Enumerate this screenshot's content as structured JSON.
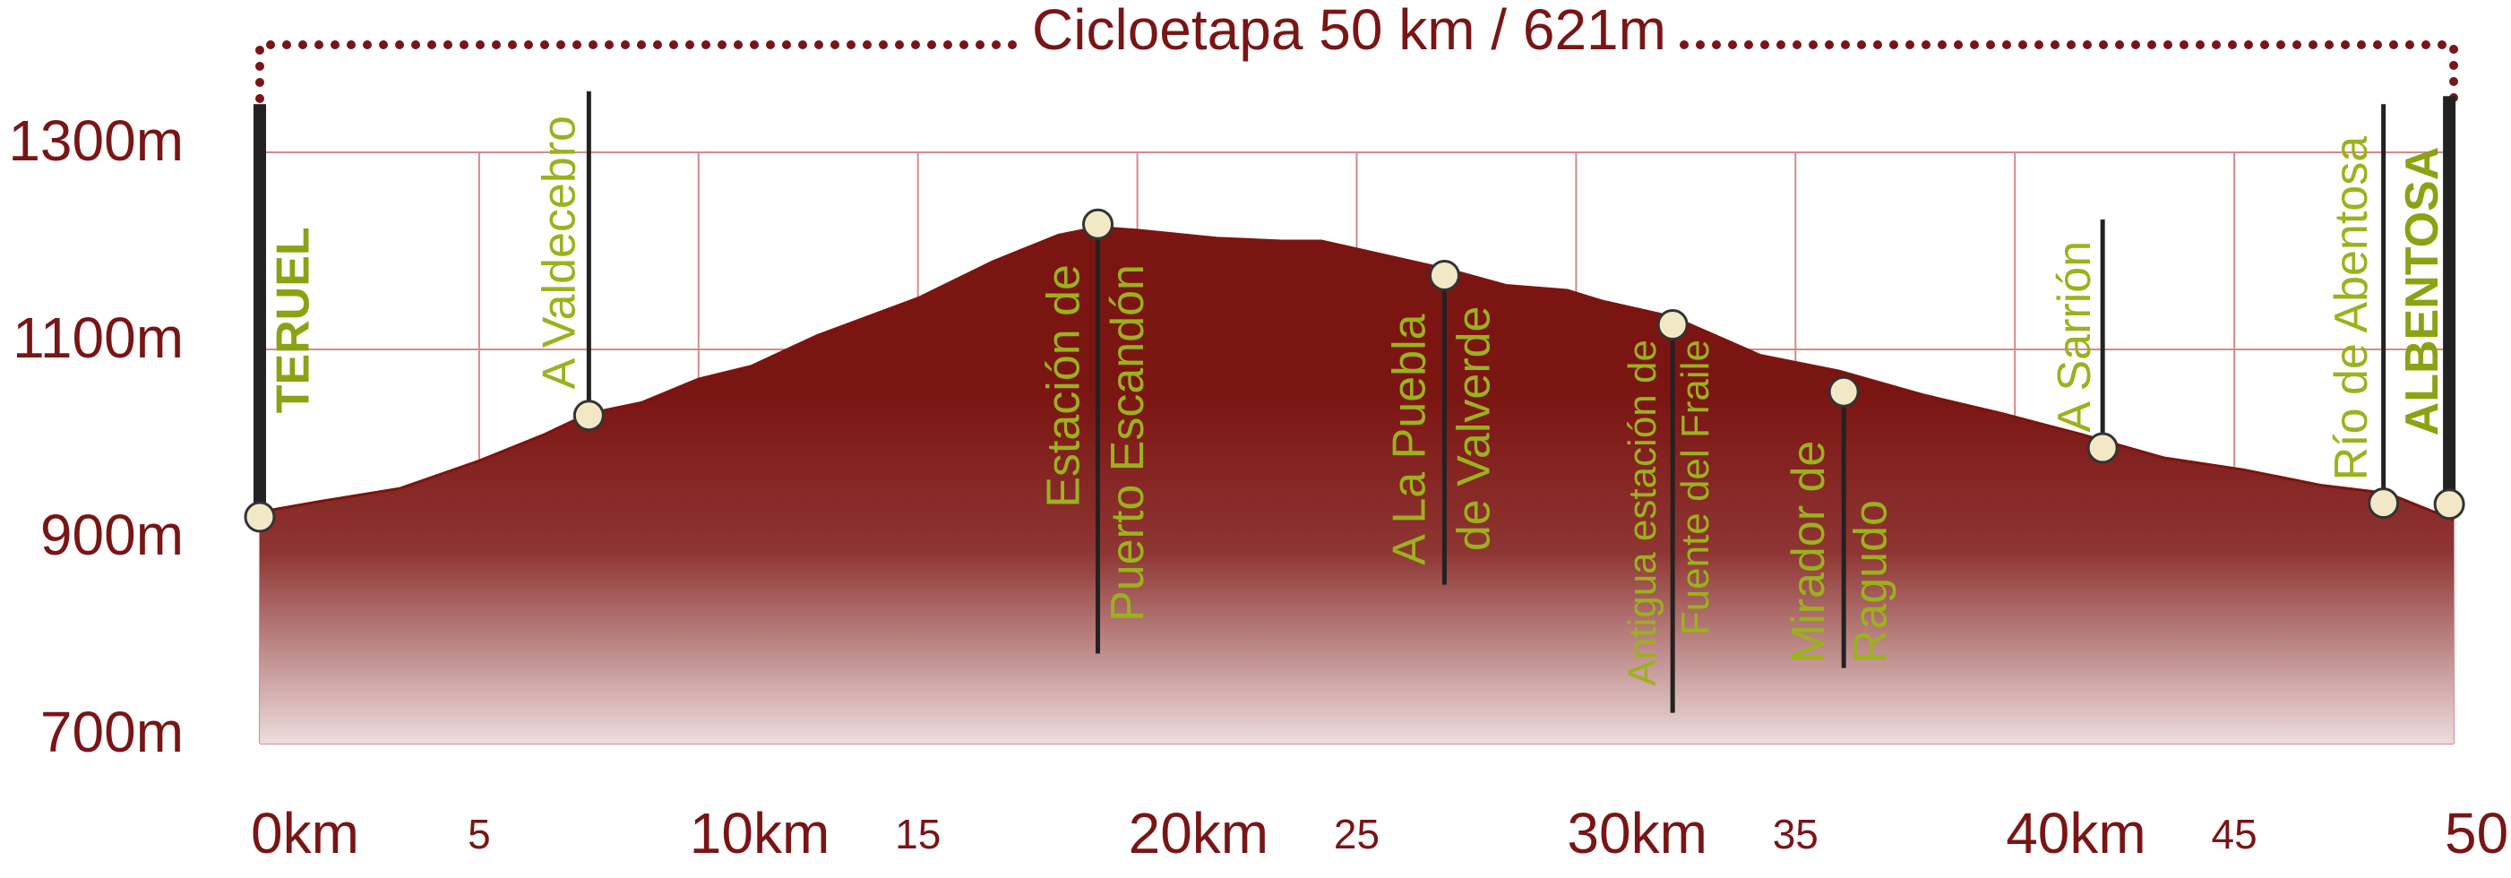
{
  "chart_data": {
    "type": "area",
    "title": "Cicloetapa 50 km / 621m",
    "x": [
      0,
      1.4,
      3.2,
      5,
      6.5,
      7.5,
      8.7,
      10,
      11.2,
      12.7,
      15,
      16.7,
      18.2,
      19.1,
      20,
      21.8,
      23.3,
      24.2,
      25.5,
      27.1,
      28.4,
      29.8,
      30.6,
      32.2,
      34.2,
      36,
      37.9,
      39.7,
      41.5,
      43.4,
      45.2,
      47,
      48.5,
      50
    ],
    "values": [
      935,
      946,
      959,
      987,
      1014,
      1035,
      1046,
      1070,
      1083,
      1114,
      1152,
      1189,
      1216,
      1224,
      1221,
      1213,
      1210,
      1210,
      1197,
      1181,
      1165,
      1160,
      1149,
      1133,
      1094,
      1078,
      1054,
      1035,
      1014,
      990,
      978,
      962,
      954,
      927
    ],
    "color": "#7b1512",
    "xlim": [
      0,
      50
    ],
    "ylim": [
      700,
      1380
    ],
    "xticks": [
      {
        "value": 0,
        "label": "0km"
      },
      5,
      {
        "value": 10,
        "label": "10km"
      },
      15,
      {
        "value": 20,
        "label": "20km"
      },
      25,
      {
        "value": 30,
        "label": "30km"
      },
      35,
      {
        "value": 40,
        "label": "40km"
      },
      45,
      {
        "value": 50,
        "label": "50km"
      }
    ],
    "yticks": [
      {
        "value": 700,
        "label": "700m"
      },
      {
        "value": 900,
        "label": "900m"
      },
      {
        "value": 1100,
        "label": "1100m"
      },
      {
        "value": 1300,
        "label": "1300m"
      }
    ],
    "grid": true,
    "waypoints": [
      {
        "x": 0,
        "y": 930,
        "lines": [
          "TERUEL"
        ]
      },
      {
        "x": 7.5,
        "y": 1033,
        "lines": [
          "A Valdecebro"
        ]
      },
      {
        "x": 19.1,
        "y": 1227,
        "lines": [
          "Estación de",
          "Puerto Escandón"
        ]
      },
      {
        "x": 27,
        "y": 1175,
        "lines": [
          "A La Puebla",
          "de Valverde"
        ]
      },
      {
        "x": 32.2,
        "y": 1125,
        "lines": [
          "Antigua estación de",
          "Fuente del Fraile"
        ]
      },
      {
        "x": 36.1,
        "y": 1057,
        "lines": [
          "Mirador de",
          "Ragudo"
        ]
      },
      {
        "x": 42,
        "y": 1000,
        "lines": [
          "A Sarrión"
        ]
      },
      {
        "x": 48.4,
        "y": 944,
        "lines": [
          "Río de Abentosa"
        ]
      },
      {
        "x": 49.9,
        "y": 943,
        "lines": [
          "ALBENTOSA"
        ]
      }
    ]
  }
}
